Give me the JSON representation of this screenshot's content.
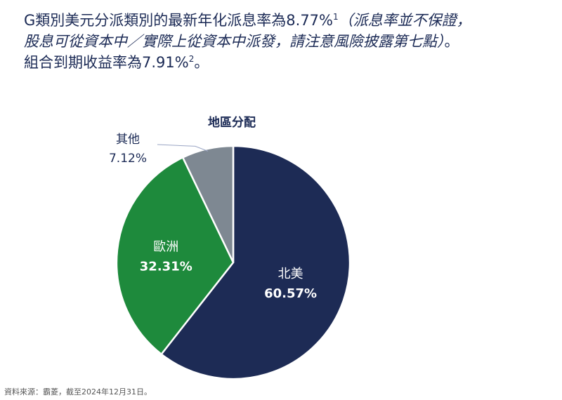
{
  "headline": {
    "line1": "G類別美元分派類別的最新年化派息率為",
    "yield": "8.77%",
    "note1": "1",
    "line1_italic": "（派息率並不保證，",
    "line2_italic": "股息可從資本中／實際上從資本中派發，請注意風險披露第七點）",
    "line2_end": "。",
    "line3": "組合到期收益率為",
    "ytm": "7.91%",
    "note2": "2",
    "line3_end": "。"
  },
  "chart_data": {
    "type": "pie",
    "title": "地區分配",
    "slices": [
      {
        "label": "北美",
        "value": 60.57,
        "value_label": "60.57%",
        "color": "#1d2b55"
      },
      {
        "label": "歐洲",
        "value": 32.31,
        "value_label": "32.31%",
        "color": "#1e8a3c"
      },
      {
        "label": "其他",
        "value": 7.12,
        "value_label": "7.12%",
        "color": "#7e8892"
      }
    ]
  },
  "source": "資料來源：霸菱，截至2024年12月31日。"
}
